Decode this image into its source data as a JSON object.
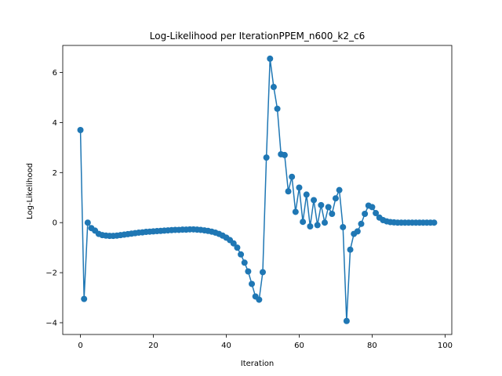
{
  "chart_data": {
    "type": "line",
    "title": "Log-Likelihood per IterationPPEM_n600_k2_c6",
    "xlabel": "Iteration",
    "ylabel": "Log-Likelihood",
    "xlim": [
      -4.85,
      101.85
    ],
    "ylim": [
      -4.47,
      7.08
    ],
    "xticks": [
      0,
      20,
      40,
      60,
      80,
      100
    ],
    "yticks": [
      -4,
      -2,
      0,
      2,
      4,
      6
    ],
    "grid": false,
    "line_color": "#1f77b4",
    "marker": "circle",
    "series": [
      {
        "x": [
          0,
          1,
          2,
          3,
          4,
          5,
          6,
          7,
          8,
          9,
          10,
          11,
          12,
          13,
          14,
          15,
          16,
          17,
          18,
          19,
          20,
          21,
          22,
          23,
          24,
          25,
          26,
          27,
          28,
          29,
          30,
          31,
          32,
          33,
          34,
          35,
          36,
          37,
          38,
          39,
          40,
          41,
          42,
          43,
          44,
          45,
          46,
          47,
          48,
          49,
          50,
          51,
          52,
          53,
          54,
          55,
          56,
          57,
          58,
          59,
          60,
          61,
          62,
          63,
          64,
          65,
          66,
          67,
          68,
          69,
          70,
          71,
          72,
          73,
          74,
          75,
          76,
          77,
          78,
          79,
          80,
          81,
          82,
          83,
          84,
          85,
          86,
          87,
          88,
          89,
          90,
          91,
          92,
          93,
          94,
          95,
          96,
          97
        ],
        "y": [
          3.7,
          -3.05,
          0.0,
          -0.22,
          -0.32,
          -0.45,
          -0.5,
          -0.52,
          -0.53,
          -0.53,
          -0.52,
          -0.5,
          -0.48,
          -0.46,
          -0.44,
          -0.42,
          -0.4,
          -0.39,
          -0.37,
          -0.36,
          -0.35,
          -0.34,
          -0.33,
          -0.32,
          -0.31,
          -0.3,
          -0.29,
          -0.29,
          -0.28,
          -0.28,
          -0.27,
          -0.27,
          -0.28,
          -0.29,
          -0.31,
          -0.33,
          -0.36,
          -0.4,
          -0.45,
          -0.52,
          -0.6,
          -0.7,
          -0.83,
          -1.0,
          -1.27,
          -1.6,
          -1.95,
          -2.45,
          -2.95,
          -3.08,
          -1.98,
          2.6,
          6.55,
          5.42,
          4.55,
          2.73,
          2.7,
          1.25,
          1.83,
          0.43,
          1.4,
          0.03,
          1.12,
          -0.15,
          0.9,
          -0.1,
          0.7,
          0.0,
          0.62,
          0.35,
          0.97,
          1.3,
          -0.18,
          -3.93,
          -1.08,
          -0.45,
          -0.35,
          -0.05,
          0.35,
          0.68,
          0.62,
          0.38,
          0.2,
          0.1,
          0.05,
          0.02,
          0.01,
          0.0,
          0.0,
          0.0,
          0.0,
          0.0,
          0.0,
          0.0,
          0.0,
          0.0,
          0.0,
          0.0
        ]
      }
    ]
  }
}
